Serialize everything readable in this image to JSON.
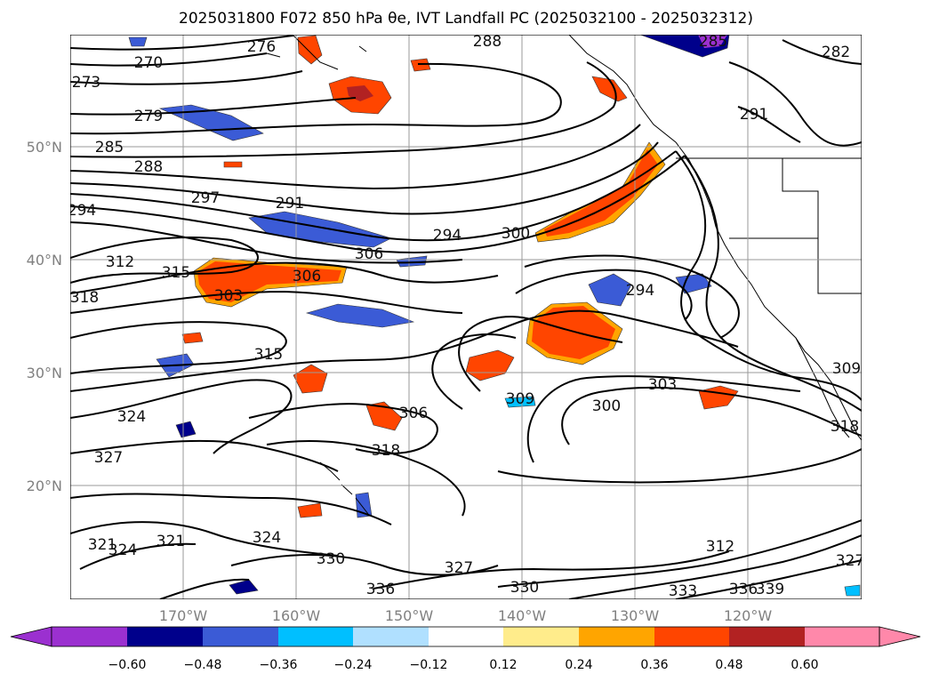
{
  "title": "2025031800 F072 850 hPa θe, IVT Landfall PC (2025032100 - 2025032312)",
  "map": {
    "projection": "equirectangular",
    "lon_range": [
      -180,
      -110
    ],
    "lat_range": [
      10,
      60
    ],
    "lat_labels": [
      "50°N",
      "40°N",
      "30°N",
      "20°N"
    ],
    "lon_labels": [
      "170°W",
      "160°W",
      "150°W",
      "140°W",
      "130°W",
      "120°W"
    ],
    "grid": true,
    "land_outline": "North America west coast (Alaska, British Columbia, US, Baja California) and Hawaii"
  },
  "theta_e_contours": {
    "units": "K",
    "interval": 3,
    "labels": [
      "288",
      "270",
      "276",
      "273",
      "279",
      "285",
      "288",
      "297",
      "291",
      "294",
      "294",
      "300",
      "306",
      "312",
      "315",
      "306",
      "303",
      "294",
      "315",
      "309",
      "303",
      "300",
      "306",
      "318",
      "324",
      "327",
      "321",
      "324",
      "321",
      "324",
      "330",
      "327",
      "330",
      "336",
      "333",
      "336",
      "339",
      "312",
      "327",
      "309",
      "318",
      "291",
      "282",
      "285",
      "318"
    ]
  },
  "ivt_pc_shading": {
    "colorbar": {
      "ticks": [
        "−0.60",
        "−0.48",
        "−0.36",
        "−0.24",
        "−0.12",
        "0.12",
        "0.24",
        "0.36",
        "0.48",
        "0.60"
      ],
      "colors": [
        "#9b30d0",
        "#00008b",
        "#3b5bd6",
        "#00bfff",
        "#b0e0ff",
        "#ffffff",
        "#ffec8b",
        "#ffa500",
        "#ff4500",
        "#b22222",
        "#ff88aa"
      ],
      "extend": "both"
    },
    "regions": [
      {
        "sign": "positive",
        "level": 0.42,
        "color": "#ff4500"
      },
      {
        "sign": "positive",
        "level": 0.42,
        "color": "#ff4500"
      },
      {
        "sign": "positive",
        "level": 0.3,
        "color": "#ffa500"
      },
      {
        "sign": "positive",
        "level": 0.5,
        "color": "#b22222"
      },
      {
        "sign": "negative",
        "level": -0.4,
        "color": "#3b5bd6"
      },
      {
        "sign": "negative",
        "level": -0.4,
        "color": "#3b5bd6"
      },
      {
        "sign": "negative",
        "level": -0.55,
        "color": "#00008b"
      }
    ]
  }
}
